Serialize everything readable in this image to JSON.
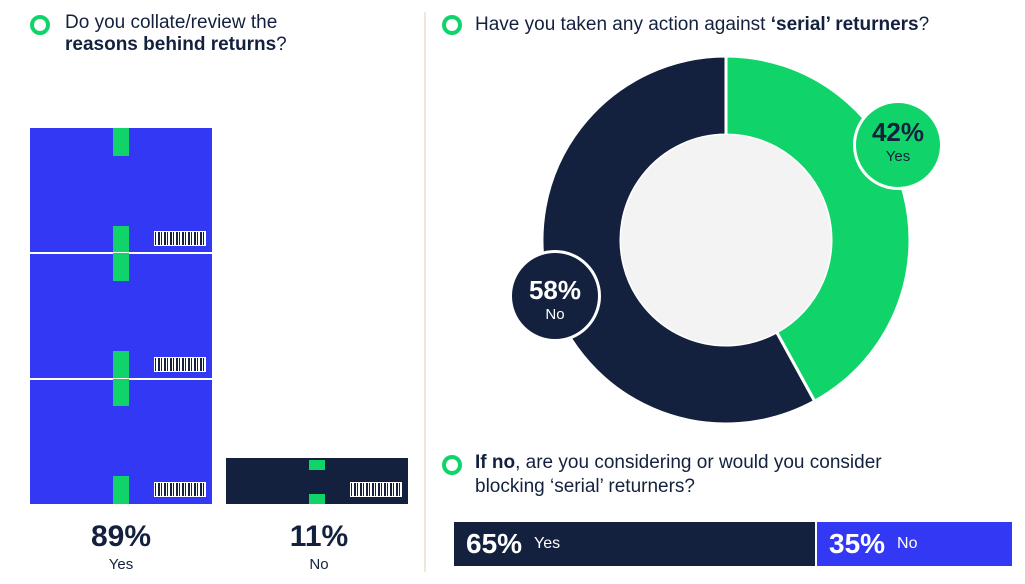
{
  "left": {
    "question_line1": "Do you collate/review the",
    "question_bold": "reasons behind returns",
    "question_end": "?",
    "colors": {
      "yes": "#3338f5",
      "no": "#13213f",
      "accent": "#10d469"
    }
  },
  "right": {
    "question_prefix": "Have you taken any action against ",
    "question_bold": "‘serial’ returners",
    "question_end": "?",
    "sub_bold": "If no",
    "sub_rest_line1": ", are you considering or would you consider",
    "sub_line2": "blocking ‘serial’ returners?",
    "colors": {
      "yes": "#10d469",
      "no": "#13213f",
      "bar_yes": "#13213f",
      "bar_no": "#3338f5"
    }
  },
  "chart_data": [
    {
      "type": "bar",
      "title": "Do you collate/review the reasons behind returns?",
      "categories": [
        "Yes",
        "No"
      ],
      "values": [
        89,
        11
      ],
      "value_labels": [
        "89%",
        "11%"
      ],
      "unit": "%"
    },
    {
      "type": "pie",
      "title": "Have you taken any action against ‘serial’ returners?",
      "categories": [
        "Yes",
        "No"
      ],
      "values": [
        42,
        58
      ],
      "value_labels": [
        "42%",
        "58%"
      ],
      "unit": "%"
    },
    {
      "type": "bar",
      "title": "If no, are you considering or would you consider blocking ‘serial’ returners?",
      "categories": [
        "Yes",
        "No"
      ],
      "values": [
        65,
        35
      ],
      "value_labels": [
        "65%",
        "35%"
      ],
      "unit": "%"
    }
  ]
}
